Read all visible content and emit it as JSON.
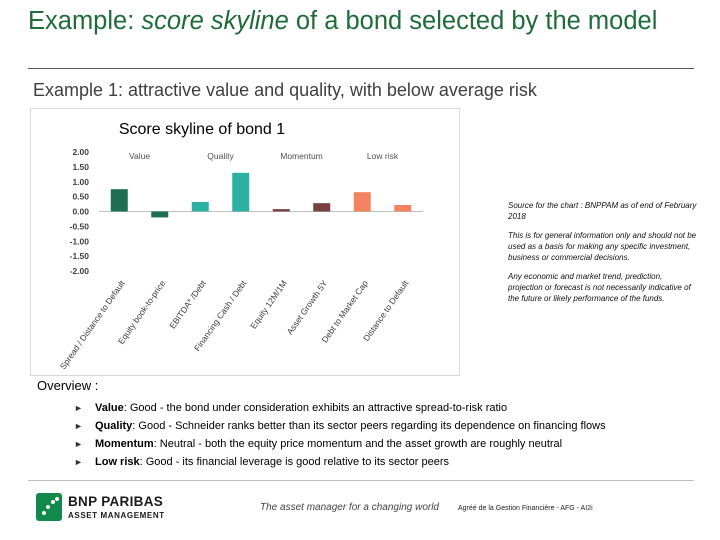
{
  "slide": {
    "title_pre": "Example: ",
    "title_em": "score skyline",
    "title_post": " of a bond selected by the model",
    "subtitle": "Example 1: attractive value and quality, with below average risk"
  },
  "chart_data": {
    "type": "bar",
    "title": "Score skyline of bond 1",
    "categories": [
      "Spread / Distance to Default",
      "Equity book-to-price",
      "EBITDA* /Debt",
      "Financing Cash / Debt",
      "Equity 12M/1M",
      "Asset Growth 5Y",
      "Debt to Market Cap",
      "Distance to Default"
    ],
    "values": [
      0.75,
      -0.2,
      0.32,
      1.3,
      0.08,
      0.28,
      0.65,
      0.22
    ],
    "colors": [
      "#1e6e54",
      "#1e6e54",
      "#2bb1a4",
      "#2bb1a4",
      "#7a3f3f",
      "#7a3f3f",
      "#f28462",
      "#f28462"
    ],
    "groups": [
      {
        "label": "Value",
        "start": 0,
        "end": 1
      },
      {
        "label": "Quality",
        "start": 2,
        "end": 3
      },
      {
        "label": "Momentum",
        "start": 4,
        "end": 5
      },
      {
        "label": "Low risk",
        "start": 6,
        "end": 7
      }
    ],
    "ylim": [
      -2.0,
      2.0
    ],
    "yticks": [
      "2.00",
      "1.50",
      "1.00",
      "0.50",
      "0.00",
      "-0.50",
      "-1.00",
      "-1.50",
      "-2.00"
    ],
    "xlabel": "",
    "ylabel": "",
    "grid": false
  },
  "notes": [
    "Source for the chart : BNPPAM  as of end of February 2018",
    "This is for general information only and should not be used as a basis for making any specific investment, business or commercial decisions.",
    "Any economic and market trend, prediction, projection or forecast is not necessarily indicative of the future or likely performance of the funds."
  ],
  "overview": {
    "title": "Overview :",
    "items": [
      {
        "term": "Value",
        "text": ": Good - the bond under consideration exhibits an attractive spread-to-risk ratio"
      },
      {
        "term": "Quality",
        "text": ": Good - Schneider ranks better than its sector peers regarding its dependence on financing flows"
      },
      {
        "term": "Momentum",
        "text": ": Neutral - both the equity price momentum and the asset growth are roughly neutral"
      },
      {
        "term": "Low risk",
        "text": ": Good - its financial leverage is good relative to its sector peers"
      }
    ]
  },
  "footer": {
    "brand": "BNP PARIBAS",
    "brand_sub": "ASSET MANAGEMENT",
    "logo_icon": "bnp-stars-icon",
    "tagline": "The asset manager for a changing world",
    "right": "Agréé de la Gestion Financière - AFG - AI2i"
  }
}
